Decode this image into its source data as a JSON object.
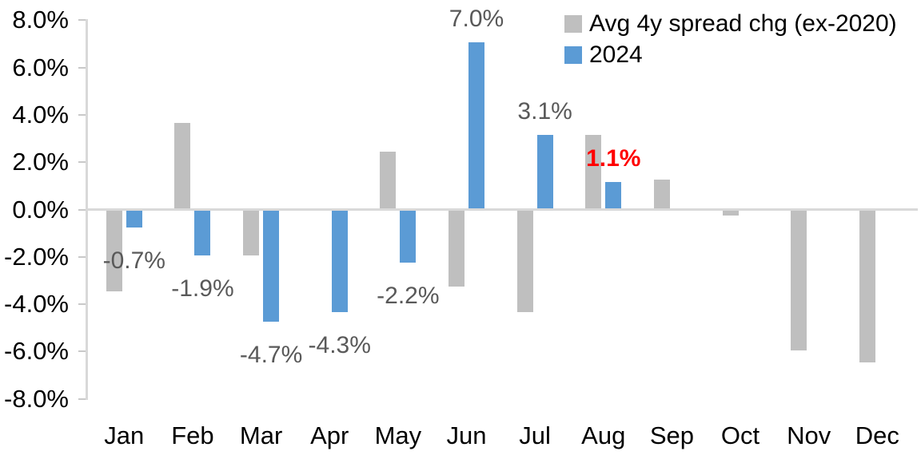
{
  "chart_data": {
    "type": "bar",
    "title": "",
    "xlabel": "",
    "ylabel": "",
    "categories": [
      "Jan",
      "Feb",
      "Mar",
      "Apr",
      "May",
      "Jun",
      "Jul",
      "Aug",
      "Sep",
      "Oct",
      "Nov",
      "Dec"
    ],
    "series": [
      {
        "name": "Avg 4y spread chg (ex-2020)",
        "color": "#BFBFBF",
        "values": [
          -3.4,
          3.6,
          -1.9,
          0.0,
          2.4,
          -3.2,
          -4.3,
          3.1,
          1.2,
          -0.2,
          -5.9,
          -6.4
        ]
      },
      {
        "name": "2024",
        "color": "#5B9BD5",
        "values": [
          -0.7,
          -1.9,
          -4.7,
          -4.3,
          -2.2,
          7.0,
          3.1,
          1.1,
          null,
          null,
          null,
          null
        ]
      }
    ],
    "ylim": [
      -8,
      8
    ],
    "y_tick_step": 2,
    "y_ticks": [
      "8.0%",
      "6.0%",
      "4.0%",
      "2.0%",
      "0.0%",
      "-2.0%",
      "-4.0%",
      "-6.0%",
      "-8.0%"
    ],
    "grid": false,
    "legend_position": "top-right",
    "axis_color": "#D9D9D9",
    "data_label_default_color": "#595959",
    "data_labels": [
      {
        "month": "Jan",
        "series": "2024",
        "text": "-0.7%",
        "color": "#595959",
        "bold": false,
        "side": "below"
      },
      {
        "month": "Feb",
        "series": "2024",
        "text": "-1.9%",
        "color": "#595959",
        "bold": false,
        "side": "below"
      },
      {
        "month": "Mar",
        "series": "2024",
        "text": "-4.7%",
        "color": "#595959",
        "bold": false,
        "side": "below"
      },
      {
        "month": "Apr",
        "series": "2024",
        "text": "-4.3%",
        "color": "#595959",
        "bold": false,
        "side": "below"
      },
      {
        "month": "May",
        "series": "2024",
        "text": "-2.2%",
        "color": "#595959",
        "bold": false,
        "side": "below"
      },
      {
        "month": "Jun",
        "series": "2024",
        "text": "7.0%",
        "color": "#595959",
        "bold": false,
        "side": "above"
      },
      {
        "month": "Jul",
        "series": "2024",
        "text": "3.1%",
        "color": "#595959",
        "bold": false,
        "side": "above"
      },
      {
        "month": "Aug",
        "series": "2024",
        "text": "1.1%",
        "color": "#FF0000",
        "bold": true,
        "side": "above"
      }
    ]
  }
}
